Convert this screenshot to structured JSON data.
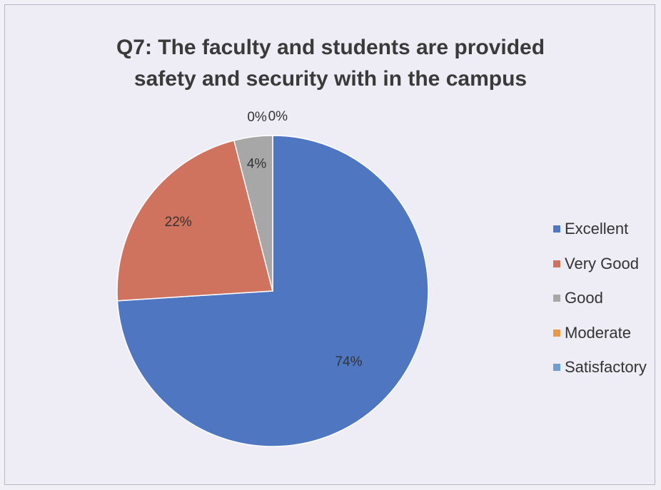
{
  "chart_data": {
    "type": "pie",
    "title_lines": [
      "Q7: The faculty and students are provided",
      "safety and security with in the campus"
    ],
    "categories": [
      "Excellent",
      "Very Good",
      "Good",
      "Moderate",
      "Satisfactory"
    ],
    "values": [
      74,
      22,
      4,
      0,
      0
    ],
    "data_labels": [
      "74%",
      "22%",
      "4%",
      "0%",
      "0%"
    ],
    "colors": [
      "#4f77c1",
      "#d0735e",
      "#a7a7a7",
      "#e89a4a",
      "#6f9fd0"
    ],
    "legend_position": "right"
  }
}
